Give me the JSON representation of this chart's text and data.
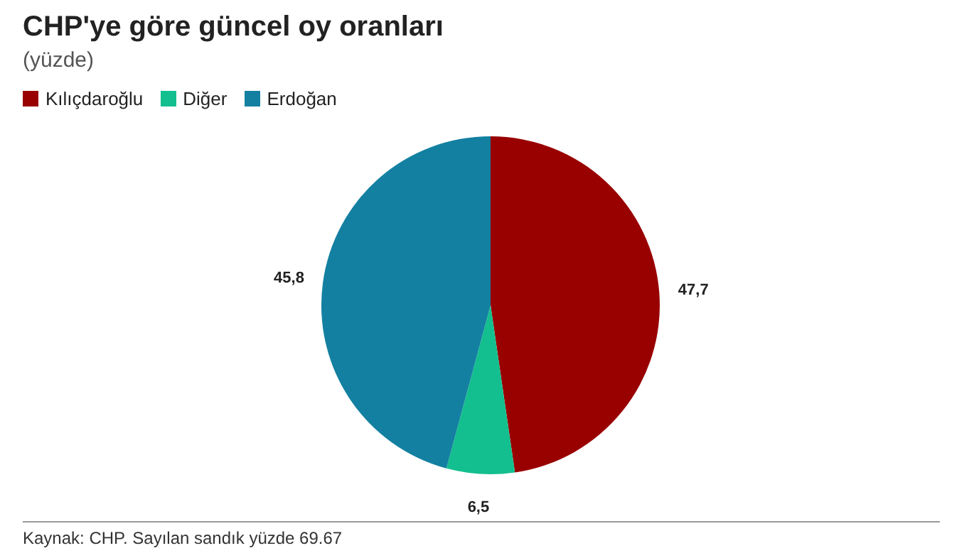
{
  "chart_data": {
    "type": "pie",
    "title": "CHP'ye göre güncel oy oranları",
    "subtitle": "(yüzde)",
    "categories": [
      "Kılıçdaroğlu",
      "Diğer",
      "Erdoğan"
    ],
    "values": [
      47.7,
      6.5,
      45.8
    ],
    "colors": [
      "#990000",
      "#13bf8e",
      "#1380a1"
    ],
    "value_labels": [
      "47,7",
      "6,5",
      "45,8"
    ],
    "legend": "top left",
    "annotations": [
      "Kaynak: CHP. Sayılan sandık yüzde 69.67"
    ]
  }
}
